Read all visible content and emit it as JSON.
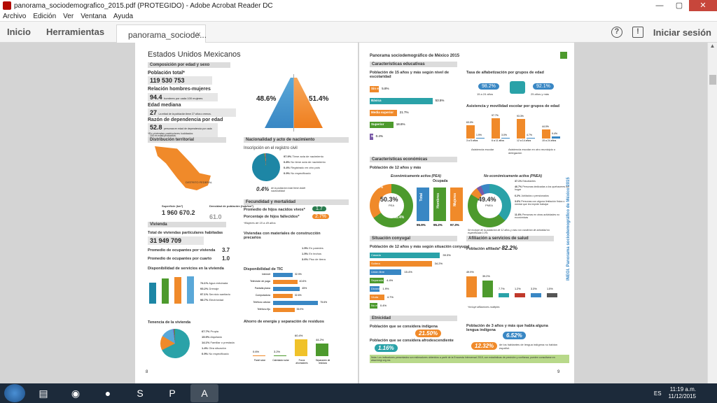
{
  "window": {
    "title": "panorama_sociodemografico_2015.pdf (PROTEGIDO) - Adobe Acrobat Reader DC",
    "controls": [
      "—",
      "▢",
      "✕"
    ]
  },
  "menu": [
    "Archivo",
    "Edición",
    "Ver",
    "Ventana",
    "Ayuda"
  ],
  "toolbar": {
    "inicio": "Inicio",
    "herramientas": "Herramientas",
    "tab": "panorama_sociode...",
    "close": "×",
    "help": "?",
    "signin": "Iniciar sesión"
  },
  "page1": {
    "title": "Estados Unidos Mexicanos",
    "sec_comp": "Composición por edad y sexo",
    "pob_label": "Población total*",
    "pob_value": "119 530 753",
    "rel_label": "Relación hombres-mujeres",
    "rel_value": "94.4",
    "rel_note": "hombres por cada 100 mujeres",
    "edad_label": "Edad mediana",
    "edad_value": "27",
    "edad_note": "La mitad de la población tiene 27 años o menos.",
    "dep_label": "Razón de dependencia por edad",
    "dep_value": "52.8",
    "dep_note": "personas en edad de dependencia por cada 100 en edad productiva.",
    "dep_foot": "*En viviendas particulares habitadas",
    "pyr_men": "48.6%",
    "pyr_women": "51.4%",
    "sec_dist": "Distribución territorial",
    "df_label": "DISTRITO FEDERAL",
    "sup_label": "Superficie (km²)",
    "sup_value": "1 960 670.2",
    "dens_label": "Densidad de población (hab/km²)",
    "dens_value": "61.0",
    "sec_nac": "Nacionalidad y acto de nacimiento",
    "insc": "Inscripción en el registro civil",
    "insc_items": [
      {
        "pct": "97.9%",
        "label": "Tiene acta de nacimiento"
      },
      {
        "pct": "0.8%",
        "label": "No tiene acta de nacimiento"
      },
      {
        "pct": "0.4%",
        "label": "Registrado en otro país"
      },
      {
        "pct": "0.9%",
        "label": "No especificado"
      }
    ],
    "doble": "0.4%",
    "doble_note": "de la población total tiene doble nacionalidad",
    "sec_fec": "Fecundidad y mortalidad",
    "hijos_label": "Promedio de hijos nacidos vivos*",
    "hijos_value": "1.7",
    "fall_label": "Porcentaje de hijos fallecidos*",
    "fall_value": "2.7%",
    "fec_foot": "*Mujeres de 15 a 49 años",
    "sec_viv": "Vivienda",
    "viv_total_label": "Total de viviendas particulares habitadas",
    "viv_total": "31 949 709",
    "ocup_viv_label": "Promedio de ocupantes por vivienda",
    "ocup_viv": "3.7",
    "ocup_cto_label": "Promedio de ocupantes por cuarto",
    "ocup_cto": "1.0",
    "disp_serv": "Disponibilidad de servicios en la vivienda",
    "serv_items": [
      {
        "pct": "74.1%",
        "label": "Agua entubada"
      },
      {
        "pct": "93.2%",
        "label": "Drenaje"
      },
      {
        "pct": "97.1%",
        "label": "Servicio sanitario"
      },
      {
        "pct": "98.7%",
        "label": "Electricidad"
      }
    ],
    "tenencia": "Tenencia de la vivienda",
    "ten_items": [
      {
        "pct": "67.7%",
        "label": "Propia"
      },
      {
        "pct": "15.9%",
        "label": "Alquilada"
      },
      {
        "pct": "14.1%",
        "label": "Familiar o prestada"
      },
      {
        "pct": "1.4%",
        "label": "Otra situación"
      },
      {
        "pct": "0.9%",
        "label": "No especificado"
      }
    ],
    "precarios": "Viviendas con materiales de construcción precarios",
    "prec_items": [
      {
        "pct": "1.5%",
        "label": "En paredes"
      },
      {
        "pct": "1.5%",
        "label": "En techos"
      },
      {
        "pct": "3.6%",
        "label": "Piso de tierra"
      }
    ],
    "tic": "Disponibilidad de TIC",
    "ahorro": "Ahorro de energía y separación de residuos",
    "ahorro_labels": [
      "Panel solar",
      "Calentador solar",
      "Focos ahorradores",
      "Separación de residuos"
    ],
    "page_num": "8"
  },
  "page2": {
    "header": "Panorama sociodemográfico de México 2015",
    "sec_edu": "Características educativas",
    "esc_title": "Población de 15 años y más según nivel de escolaridad",
    "alfa_title": "Tasa de alfabetización por grupos de edad",
    "alfa_a": "98.2%",
    "alfa_a_l": "15 a 24 años",
    "alfa_b": "92.1%",
    "alfa_b_l": "25 años y más",
    "asist_title": "Asistencia y movilidad escolar por grupos de edad",
    "asist_legend": [
      "Asistencia escolar",
      "Asistencia escolar en otro municipio o delegación"
    ],
    "asist_groups": [
      "3 a 5 años",
      "6 a 11 años",
      "12 a 14 años",
      "15 a 24 años"
    ],
    "asist_a": [
      "63.0%",
      "97.7%",
      "93.3%",
      "44.0%"
    ],
    "asist_b": [
      "1.9%",
      "3.0%",
      "4.7%",
      "9.4%"
    ],
    "sec_eco": "Características económicas",
    "pea_title": "Población de 12 años y más",
    "pea_label": "Económicamente activa (PEA)",
    "pea_value": "50.3%",
    "pea_sub": "PEA",
    "pea_m": "34.6%",
    "pea_h": "65.4%",
    "ocupada": "Ocupada",
    "ocup_bars": [
      {
        "label": "Total",
        "pct": "95.9%"
      },
      {
        "label": "Hombres",
        "pct": "95.2%"
      },
      {
        "label": "Mujeres",
        "pct": "97.3%"
      }
    ],
    "pnea_label": "No económicamente activa (PNEA)",
    "pnea_value": "49.4%",
    "pnea_sub": "PNEA",
    "pnea_items": [
      {
        "pct": "37.1%",
        "label": "Estudiantes"
      },
      {
        "pct": "46.7%",
        "label": "Personas dedicadas a los quehaceres del hogar"
      },
      {
        "pct": "6.2%",
        "label": "Jubilados o pensionados"
      },
      {
        "pct": "3.6%",
        "label": "Personas con alguna limitación física o mental que les impide trabajar"
      },
      {
        "pct": "11.6%",
        "label": "Personas en otras actividades no económicas"
      }
    ],
    "pea_foot": "Se excluye de la población de 12 años y más con condición de actividad no especificada 0.3%.",
    "sec_conyu": "Situación conyugal",
    "conyu_title": "Población de 12 años y más según situación conyugal",
    "sec_salud": "Afiliación a servicios de salud",
    "afil_label": "Población afiliada*",
    "afil_value": "82.2%",
    "salud_pcts": [
      "49.9%",
      "39.2%",
      "7.7%",
      "1.2%",
      "3.3%",
      "1.5%"
    ],
    "salud_note": "*Incluye afiliaciones múltiples",
    "sec_etn": "Etnicidad",
    "indig_label": "Población que se considera indígena",
    "indig_value": "21.50%",
    "afro_label": "Población que se considera afrodescendiente",
    "afro_value": "1.16%",
    "lengua_label": "Población de 3 años y más que habla alguna lengua indígena",
    "lengua_value": "6.52%",
    "no_esp_value": "12.32%",
    "no_esp_label": "de los hablantes de lengua indígena no hablan español.",
    "foot": "Nota: Los indicadores presentados son estimadores obtenidos a partir de la Encuesta Intercensal 2015, con estadísticas de precisión y confianza, pueden consultarse en www.inegi.org.mx.",
    "side": "INEGI. Panorama sociodemográfico de México 2015",
    "page_num": "9"
  },
  "chart_data": [
    {
      "type": "bar",
      "title": "Población de 15 años y más según nivel de escolaridad",
      "categories": [
        "Sin escolaridad",
        "Básica",
        "Media superior",
        "Superior",
        "No especificado"
      ],
      "values": [
        5.8,
        53.5,
        21.7,
        18.6,
        0.4
      ],
      "colors": [
        "#f08a2a",
        "#2aa2a8",
        "#f08a2a",
        "#4d9a2d",
        "#7a5aa8"
      ]
    },
    {
      "type": "bar",
      "title": "Disponibilidad de TIC",
      "categories": [
        "Internet",
        "Televisión de paga",
        "Pantalla plana",
        "Computadora",
        "Teléfono celular",
        "Teléfono fijo"
      ],
      "values": [
        32.9,
        40.6,
        45.0,
        32.6,
        75.6,
        35.9
      ]
    },
    {
      "type": "bar",
      "title": "Población de 12 años y más según situación conyugal",
      "categories": [
        "Casada",
        "Soltera",
        "Unión libre",
        "Separada",
        "Divorciada",
        "Viuda",
        "No especificado"
      ],
      "values": [
        39.3,
        34.2,
        15.4,
        4.4,
        1.9,
        4.7,
        0.4
      ]
    },
    {
      "type": "bar",
      "title": "Ahorro de energía y separación de residuos",
      "categories": [
        "Panel solar",
        "Calentador solar",
        "Focos ahorradores",
        "Separación de residuos"
      ],
      "values": [
        0.6,
        3.2,
        60.4,
        44.2
      ]
    }
  ],
  "taskbar": {
    "lang": "ES",
    "time": "11:19 a.m.",
    "date": "11/12/2015"
  }
}
